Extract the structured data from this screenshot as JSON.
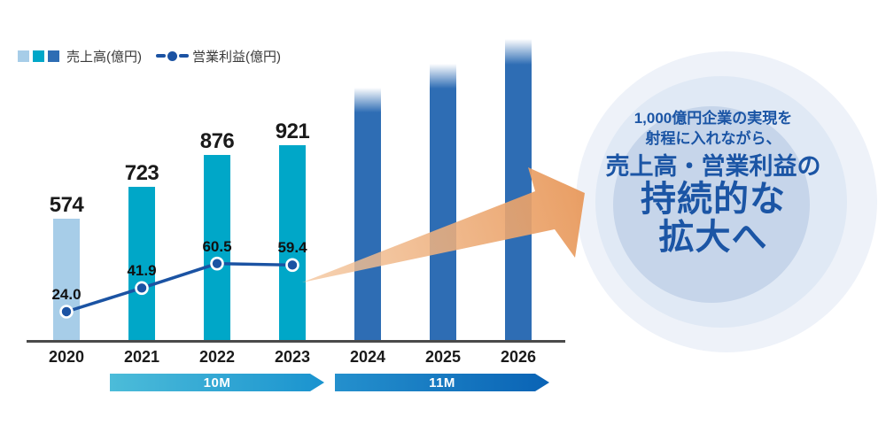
{
  "legend": {
    "sales_label": "売上高(億円)",
    "profit_label": "営業利益(億円)"
  },
  "chart_data": {
    "type": "combo",
    "title": "",
    "categories": [
      "2020",
      "2021",
      "2022",
      "2023",
      "2024",
      "2025",
      "2026"
    ],
    "series": [
      {
        "name": "売上高(億円)",
        "type": "bar",
        "unit": "億円",
        "values": [
          574,
          723,
          876,
          921,
          null,
          null,
          null
        ]
      },
      {
        "name": "営業利益(億円)",
        "type": "line",
        "unit": "億円",
        "values": [
          24.0,
          41.9,
          60.5,
          59.4,
          null,
          null,
          null
        ]
      }
    ],
    "projected_years": [
      "2024",
      "2025",
      "2026"
    ],
    "period_bands": [
      {
        "label": "10M",
        "from": "2021",
        "to": "2023"
      },
      {
        "label": "11M",
        "from": "2024",
        "to": "2026"
      }
    ],
    "legend_position": "top-left",
    "grid": false
  },
  "annotation": {
    "line1": "1,000億円企業の実現を",
    "line2": "射程に入れながら、",
    "line3": "売上高・営業利益の",
    "line4": "持続的な",
    "line5": "拡大へ"
  },
  "colors": {
    "bar_2020": "#a7cde8",
    "bar_actual": "#00a7c8",
    "bar_projected": "#2e6db4",
    "line": "#1b53a3",
    "value_text": "#1a1a1a",
    "axis": "#4a4a4a",
    "band_gradients": [
      [
        "#4cbcd9",
        "#1a93cf"
      ],
      [
        "#2490cd",
        "#0a63b5"
      ]
    ],
    "arrow_tail": "#f4c79f",
    "arrow_head": "#e8995c",
    "ring_outer": "#eef2f9",
    "ring_mid": "#e0e9f5",
    "ring_inner": "#c6d5ea",
    "circle_text": "#1b55a5"
  }
}
